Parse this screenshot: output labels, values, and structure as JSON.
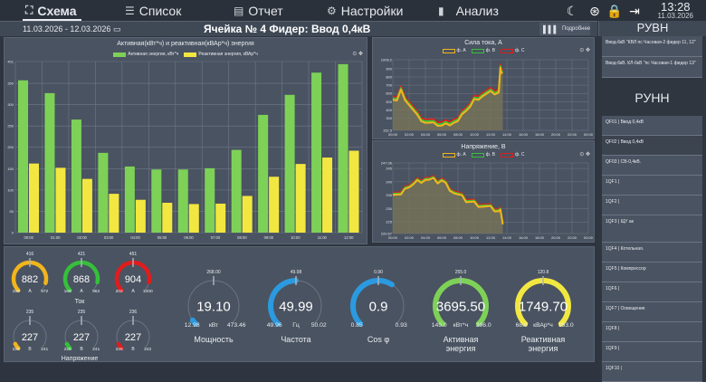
{
  "nav": {
    "tabs": [
      {
        "label": "Схема",
        "icon": "schema-icon",
        "active": true
      },
      {
        "label": "Список",
        "icon": "list-icon",
        "active": false
      },
      {
        "label": "Отчет",
        "icon": "report-icon",
        "active": false
      },
      {
        "label": "Настройки",
        "icon": "gear-icon",
        "active": false
      },
      {
        "label": "Анализ",
        "icon": "signal-bars-icon",
        "active": false
      }
    ],
    "time": "13:28",
    "date": "11.03.2026"
  },
  "subbar": {
    "date_range": "11.03.2026 - 12.03.2026",
    "title": "Ячейка № 4 Фидер: Ввод 0,4кВ",
    "details_label": "Подробнее"
  },
  "colors": {
    "active": "#7ed157",
    "reactive": "#f2e740",
    "phaseA": "#f2b51c",
    "phaseB": "#35c03a",
    "phaseC": "#e01c1c",
    "blue": "#2b9ae0"
  },
  "chart_data": [
    {
      "type": "bar",
      "title": "Активная(кВт*ч) и реактивная(кВАр*ч) энергия",
      "categories": [
        "00:00",
        "01:00",
        "02:00",
        "03:00",
        "04:00",
        "05:00",
        "06:00",
        "07:00",
        "08:00",
        "09:00",
        "10:00",
        "11:00",
        "12:00"
      ],
      "series": [
        {
          "name": "Активная энергия, кВт*ч",
          "values": [
            357,
            327,
            265,
            187,
            155,
            148,
            148,
            151,
            194,
            276,
            323,
            375,
            395
          ]
        },
        {
          "name": "Реактивная энергия, кВАр*ч",
          "values": [
            162,
            152,
            126,
            91,
            77,
            70,
            67,
            68,
            86,
            131,
            161,
            176,
            192
          ]
        }
      ],
      "yticks": [
        "0",
        "50",
        "100",
        "150",
        "200",
        "250",
        "300",
        "350",
        "401"
      ],
      "ylim": [
        0,
        401
      ],
      "legend": "top"
    },
    {
      "type": "area",
      "title": "Сила тока, А",
      "series_names": [
        "ф. A",
        "ф. B",
        "ф. C"
      ],
      "xticks": [
        "00:00",
        "02:00",
        "04:00",
        "06:00",
        "08:00",
        "10:00",
        "12:00",
        "14:00",
        "16:00",
        "18:00",
        "20:00",
        "22:00",
        "00:00"
      ],
      "yticks": [
        "152.5",
        "300",
        "400",
        "500",
        "600",
        "700",
        "800",
        "900",
        "1008.2"
      ],
      "ylim": [
        152.5,
        1008.2
      ],
      "x_hours": [
        0,
        0.5,
        1,
        1.5,
        2,
        2.5,
        3,
        3.5,
        4,
        4.5,
        5,
        5.5,
        6,
        6.5,
        7,
        7.5,
        8,
        8.5,
        9,
        9.5,
        10,
        10.5,
        11,
        11.5,
        12,
        12.5,
        13,
        13.2,
        13.3,
        13.5
      ],
      "values_A": [
        540,
        520,
        640,
        500,
        470,
        400,
        330,
        280,
        250,
        240,
        230,
        220,
        210,
        225,
        230,
        250,
        260,
        330,
        400,
        440,
        520,
        540,
        570,
        590,
        610,
        600,
        610,
        900,
        870,
        850
      ],
      "legend": "top"
    },
    {
      "type": "area",
      "title": "Напряжение, В",
      "series_names": [
        "ф. A",
        "ф. B",
        "ф. C"
      ],
      "xticks": [
        "00:00",
        "02:00",
        "04:00",
        "06:00",
        "08:00",
        "10:00",
        "12:00",
        "14:00",
        "16:00",
        "18:00",
        "20:00",
        "22:00",
        "00:00"
      ],
      "yticks": [
        "220.67",
        "225",
        "230",
        "235",
        "240",
        "245",
        "247.06"
      ],
      "ylim": [
        220.67,
        247.06
      ],
      "x_hours": [
        0,
        0.5,
        1,
        1.5,
        2,
        2.5,
        3,
        3.5,
        4,
        4.5,
        5,
        5.5,
        6,
        6.5,
        7,
        7.5,
        8,
        8.5,
        9,
        9.5,
        10,
        10.5,
        11,
        11.5,
        12,
        12.5,
        13,
        13.2,
        13.5
      ],
      "values_A": [
        236,
        235.5,
        235,
        236.5,
        238.5,
        239,
        240,
        240.5,
        241,
        240.5,
        240.5,
        240,
        240.5,
        239,
        237.5,
        236,
        235,
        234,
        233,
        232.5,
        232,
        231.5,
        231,
        230.5,
        230,
        229.5,
        229,
        229,
        225
      ],
      "legend": "top"
    }
  ],
  "gauges_current": {
    "label": "Ток",
    "items": [
      {
        "value": "882",
        "unit": "A",
        "min": "158",
        "max": "972",
        "avg": "416",
        "color": "#f2b51c",
        "fraction": 0.89
      },
      {
        "value": "868",
        "unit": "A",
        "min": "168",
        "max": "962",
        "avg": "421",
        "color": "#35c03a",
        "fraction": 0.88
      },
      {
        "value": "904",
        "unit": "A",
        "min": "202",
        "max": "1000",
        "avg": "451",
        "color": "#e01c1c",
        "fraction": 0.88
      }
    ]
  },
  "gauges_voltage": {
    "label": "Напряжение",
    "items": [
      {
        "value": "227",
        "unit": "В",
        "min": "226",
        "max": "241",
        "avg": "235",
        "color": "#f2b51c",
        "fraction": 0.07
      },
      {
        "value": "227",
        "unit": "В",
        "min": "226",
        "max": "241",
        "avg": "235",
        "color": "#35c03a",
        "fraction": 0.07
      },
      {
        "value": "227",
        "unit": "В",
        "min": "226",
        "max": "242",
        "avg": "236",
        "color": "#e01c1c",
        "fraction": 0.07
      }
    ]
  },
  "gauges_main": [
    {
      "label": "Мощность",
      "value": "19.10",
      "unit": "кВт",
      "min": "12.98",
      "max": "473.46",
      "avg": "268.00",
      "color": "#2b9ae0",
      "fraction": 0.01
    },
    {
      "label": "Частота",
      "value": "49.99",
      "unit": "Гц",
      "min": "49.96",
      "max": "50.02",
      "avg": "49.98",
      "color": "#2b9ae0",
      "fraction": 0.5
    },
    {
      "label": "Cos φ",
      "value": "0.9",
      "unit": "",
      "min": "0.85",
      "max": "0.93",
      "avg": "0.90",
      "color": "#2b9ae0",
      "fraction": 0.62
    },
    {
      "label": "Активная энергия",
      "value": "3695.50",
      "unit": "кВт*ч",
      "min": "149.0",
      "max": "396.0",
      "avg": "255.0",
      "color": "#7ed157",
      "fraction": 1.0
    },
    {
      "label": "Реактивная энергия",
      "value": "1749.70",
      "unit": "кВАр*ч",
      "min": "68.0",
      "max": "193.0",
      "avg": "120.8",
      "color": "#f2e740",
      "fraction": 1.0
    }
  ],
  "sidebar": {
    "rvn_title": "РУВН",
    "rvn_items": [
      "Ввод-6кВ \"КВЛ пс Часовая-2 фидер 11, 12\"",
      "Ввод-6кВ. КЛ-6кВ \"пс Часовая-1 фидер 13\""
    ],
    "rnn_title": "РУНН",
    "rnn_items": [
      "QF01 | Ввод 0,4кВ",
      "QF02 | Ввод 0,4кВ",
      "QF03 | СВ-0,4кВ.",
      "1QF1 |",
      "1QF2 |",
      "1QF3 | ЩУ ак",
      "1QF4 | Котельная.",
      "1QF5 | Компрессор",
      "1QF6 |",
      "1QF7 | Освещение",
      "1QF8 |",
      "1QF9 |",
      "1QF10 |"
    ]
  }
}
